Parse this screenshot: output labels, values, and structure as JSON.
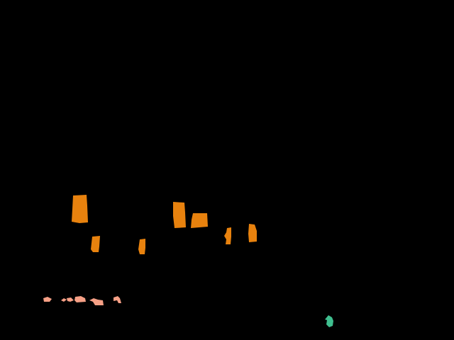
{
  "canvas": {
    "background": "#000000"
  },
  "segment_classes": [
    {
      "id": "orange",
      "color": "#E8820E"
    },
    {
      "id": "salmon",
      "color": "#F6A086"
    },
    {
      "id": "teal",
      "color": "#3FBF8F"
    }
  ]
}
